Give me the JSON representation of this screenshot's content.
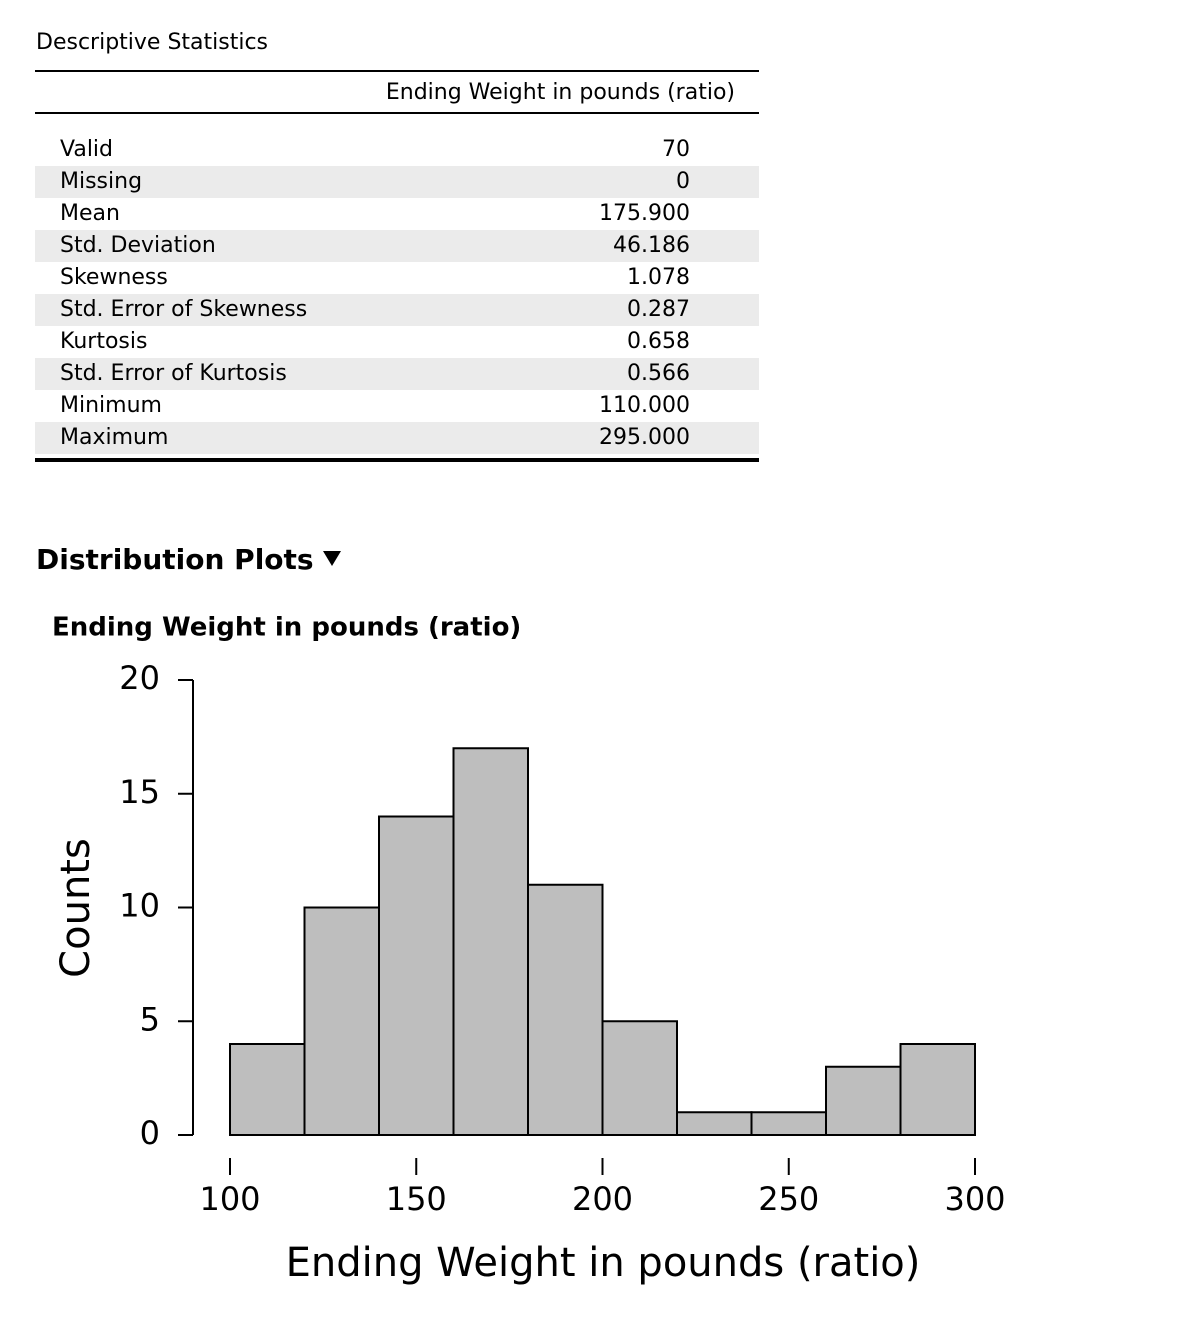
{
  "table": {
    "title": "Descriptive Statistics",
    "header": "Ending Weight in pounds (ratio)",
    "rows": [
      [
        "Valid",
        "70"
      ],
      [
        "Missing",
        "0"
      ],
      [
        "Mean",
        "175.900"
      ],
      [
        "Std. Deviation",
        "46.186"
      ],
      [
        "Skewness",
        "1.078"
      ],
      [
        "Std. Error of Skewness",
        "0.287"
      ],
      [
        "Kurtosis",
        "0.658"
      ],
      [
        "Std. Error of Kurtosis",
        "0.566"
      ],
      [
        "Minimum",
        "110.000"
      ],
      [
        "Maximum",
        "295.000"
      ]
    ]
  },
  "section": {
    "title": "Distribution Plots"
  },
  "chart_data": {
    "type": "histogram",
    "title": "Ending Weight in pounds (ratio)",
    "x_label": "Ending Weight in pounds (ratio)",
    "y_label": "Counts",
    "bins": [
      100,
      120,
      140,
      160,
      180,
      200,
      220,
      240,
      260,
      280,
      300
    ],
    "values": [
      4,
      10,
      14,
      17,
      11,
      5,
      1,
      1,
      3,
      4
    ],
    "color": "#bebebe",
    "xlim": [
      100,
      300
    ],
    "xticks": [
      100,
      150,
      200,
      250,
      300
    ],
    "ylim": [
      0,
      20
    ],
    "yticks": [
      0,
      5,
      10,
      15,
      20
    ],
    "grid": false
  }
}
